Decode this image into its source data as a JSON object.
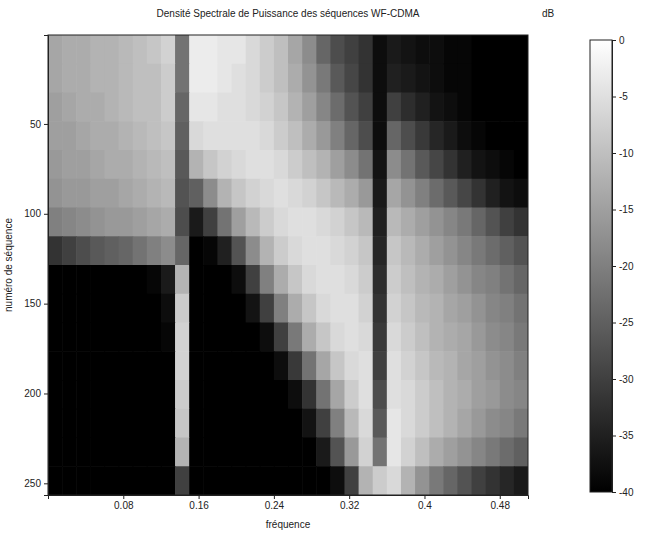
{
  "chart_data": {
    "type": "heatmap",
    "title": "Densité Spectrale de Puissance des séquences WF-CDMA",
    "xlabel": "fréquence",
    "ylabel": "numéro de séquence",
    "xlim": [
      0,
      0.51
    ],
    "xticks": [
      0.08,
      0.16,
      0.24,
      0.32,
      0.4,
      0.48
    ],
    "ylim": [
      0.5,
      256.5
    ],
    "yticks": [
      50,
      100,
      150,
      200,
      250
    ],
    "x": [
      0.0075,
      0.0225,
      0.0375,
      0.0525,
      0.0675,
      0.0825,
      0.0975,
      0.1125,
      0.1275,
      0.1425,
      0.1575,
      0.1725,
      0.1875,
      0.2025,
      0.2175,
      0.2325,
      0.2475,
      0.2625,
      0.2775,
      0.2925,
      0.3075,
      0.3225,
      0.3375,
      0.3525,
      0.3675,
      0.3825,
      0.3975,
      0.4125,
      0.4275,
      0.4425,
      0.4575,
      0.4725,
      0.4875,
      0.5025
    ],
    "y": [
      8.5,
      24.5,
      40.5,
      56.5,
      72.5,
      88.5,
      104.5,
      120.5,
      136.5,
      152.5,
      168.5,
      184.5,
      200.5,
      216.5,
      232.5,
      248.5
    ],
    "cells": [
      [
        -14,
        -13,
        -13,
        -12,
        -12,
        -11,
        -10,
        -9,
        -7,
        -22,
        -3,
        -3,
        -4,
        -4,
        -6,
        -8,
        -10,
        -14,
        -18,
        -24,
        -28,
        -30,
        -32,
        -38,
        -36,
        -37,
        -38,
        -38,
        -39,
        -39,
        -40,
        -40,
        -40,
        -40
      ],
      [
        -14,
        -13,
        -13,
        -12,
        -12,
        -11,
        -10,
        -10,
        -8,
        -22,
        -3,
        -3,
        -4,
        -5,
        -6,
        -8,
        -10,
        -13,
        -17,
        -21,
        -26,
        -29,
        -32,
        -38,
        -35,
        -36,
        -37,
        -38,
        -39,
        -39,
        -40,
        -40,
        -40,
        -40
      ],
      [
        -15,
        -14,
        -13,
        -13,
        -12,
        -11,
        -10,
        -10,
        -8,
        -24,
        -4,
        -4,
        -5,
        -5,
        -6,
        -7,
        -9,
        -12,
        -15,
        -19,
        -23,
        -27,
        -30,
        -38,
        -30,
        -33,
        -35,
        -37,
        -38,
        -39,
        -40,
        -40,
        -40,
        -40
      ],
      [
        -15,
        -15,
        -14,
        -13,
        -13,
        -12,
        -11,
        -10,
        -9,
        -25,
        -6,
        -5,
        -5,
        -5,
        -5,
        -6,
        -8,
        -10,
        -13,
        -16,
        -20,
        -24,
        -28,
        -38,
        -24,
        -28,
        -31,
        -34,
        -36,
        -38,
        -39,
        -40,
        -40,
        -40
      ],
      [
        -16,
        -15,
        -15,
        -14,
        -13,
        -13,
        -12,
        -11,
        -10,
        -26,
        -12,
        -9,
        -7,
        -6,
        -5,
        -5,
        -6,
        -8,
        -10,
        -12,
        -15,
        -18,
        -22,
        -37,
        -18,
        -22,
        -26,
        -29,
        -32,
        -35,
        -37,
        -38,
        -39,
        -40
      ],
      [
        -17,
        -16,
        -16,
        -15,
        -15,
        -14,
        -13,
        -12,
        -11,
        -27,
        -25,
        -18,
        -12,
        -9,
        -7,
        -6,
        -5,
        -6,
        -7,
        -9,
        -11,
        -13,
        -16,
        -36,
        -14,
        -17,
        -20,
        -23,
        -26,
        -29,
        -32,
        -35,
        -37,
        -38
      ],
      [
        -20,
        -19,
        -18,
        -17,
        -16,
        -16,
        -15,
        -14,
        -13,
        -28,
        -36,
        -30,
        -22,
        -15,
        -11,
        -8,
        -6,
        -5,
        -5,
        -6,
        -7,
        -9,
        -11,
        -35,
        -11,
        -13,
        -15,
        -17,
        -19,
        -21,
        -24,
        -27,
        -30,
        -32
      ],
      [
        -32,
        -30,
        -28,
        -26,
        -25,
        -24,
        -22,
        -20,
        -18,
        -24,
        -40,
        -39,
        -35,
        -27,
        -18,
        -12,
        -8,
        -6,
        -5,
        -5,
        -6,
        -7,
        -9,
        -34,
        -9,
        -11,
        -13,
        -15,
        -17,
        -19,
        -21,
        -23,
        -25,
        -27
      ],
      [
        -40,
        -40,
        -40,
        -40,
        -40,
        -40,
        -40,
        -39,
        -36,
        -12,
        -40,
        -40,
        -40,
        -38,
        -30,
        -20,
        -13,
        -9,
        -6,
        -5,
        -5,
        -6,
        -8,
        -33,
        -8,
        -10,
        -12,
        -13,
        -15,
        -17,
        -19,
        -20,
        -22,
        -24
      ],
      [
        -40,
        -40,
        -40,
        -40,
        -40,
        -40,
        -40,
        -40,
        -38,
        -8,
        -40,
        -40,
        -40,
        -40,
        -37,
        -30,
        -20,
        -13,
        -9,
        -6,
        -5,
        -5,
        -7,
        -32,
        -7,
        -9,
        -11,
        -12,
        -14,
        -15,
        -17,
        -19,
        -20,
        -22
      ],
      [
        -40,
        -40,
        -40,
        -40,
        -40,
        -40,
        -40,
        -40,
        -39,
        -7,
        -40,
        -40,
        -40,
        -40,
        -40,
        -38,
        -30,
        -21,
        -13,
        -9,
        -6,
        -5,
        -6,
        -31,
        -6,
        -8,
        -10,
        -12,
        -13,
        -14,
        -16,
        -18,
        -19,
        -21
      ],
      [
        -40,
        -40,
        -40,
        -40,
        -40,
        -40,
        -40,
        -40,
        -40,
        -7,
        -40,
        -40,
        -40,
        -40,
        -40,
        -40,
        -38,
        -31,
        -22,
        -14,
        -9,
        -6,
        -5,
        -30,
        -5,
        -7,
        -9,
        -11,
        -12,
        -14,
        -15,
        -17,
        -18,
        -20
      ],
      [
        -40,
        -40,
        -40,
        -40,
        -40,
        -40,
        -40,
        -40,
        -40,
        -8,
        -40,
        -40,
        -40,
        -40,
        -40,
        -40,
        -40,
        -38,
        -32,
        -22,
        -14,
        -8,
        -5,
        -28,
        -5,
        -6,
        -8,
        -10,
        -12,
        -13,
        -15,
        -16,
        -18,
        -19
      ],
      [
        -40,
        -40,
        -40,
        -40,
        -40,
        -40,
        -40,
        -40,
        -40,
        -9,
        -40,
        -40,
        -40,
        -40,
        -40,
        -40,
        -40,
        -40,
        -37,
        -30,
        -20,
        -11,
        -6,
        -26,
        -4,
        -6,
        -8,
        -10,
        -12,
        -14,
        -16,
        -18,
        -19,
        -21
      ],
      [
        -40,
        -40,
        -40,
        -40,
        -40,
        -40,
        -40,
        -40,
        -40,
        -12,
        -40,
        -40,
        -40,
        -40,
        -40,
        -40,
        -40,
        -40,
        -40,
        -36,
        -27,
        -16,
        -7,
        -22,
        -4,
        -7,
        -10,
        -13,
        -15,
        -17,
        -19,
        -21,
        -23,
        -25
      ],
      [
        -40,
        -40,
        -40,
        -40,
        -40,
        -40,
        -40,
        -40,
        -40,
        -30,
        -40,
        -40,
        -40,
        -40,
        -40,
        -40,
        -40,
        -40,
        -40,
        -40,
        -38,
        -30,
        -12,
        -8,
        -6,
        -12,
        -17,
        -21,
        -24,
        -27,
        -30,
        -32,
        -34,
        -36
      ]
    ],
    "colorbar": {
      "lim": [
        -40,
        0
      ],
      "ticks": [
        0,
        -5,
        -10,
        -15,
        -20,
        -25,
        -30,
        -35,
        -40
      ],
      "label": "dB"
    }
  }
}
